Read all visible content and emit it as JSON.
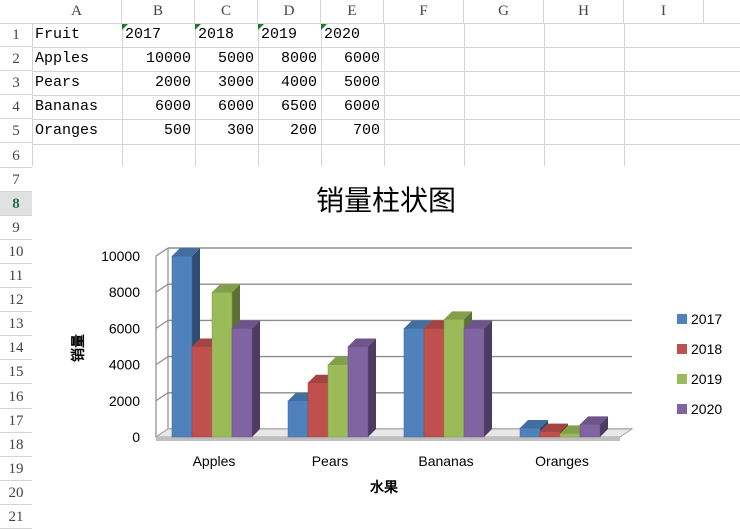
{
  "sheet": {
    "columns": [
      "A",
      "B",
      "C",
      "D",
      "E",
      "F",
      "G",
      "H",
      "I"
    ],
    "rows": [
      "1",
      "2",
      "3",
      "4",
      "5",
      "6",
      "7",
      "8",
      "9",
      "10",
      "11",
      "12",
      "13",
      "14",
      "15",
      "16",
      "17",
      "18",
      "19",
      "20",
      "21"
    ],
    "active_row": "8",
    "header_row": [
      "Fruit",
      "2017",
      "2018",
      "2019",
      "2020"
    ],
    "data_rows": [
      [
        "Apples",
        "10000",
        "5000",
        "8000",
        "6000"
      ],
      [
        "Pears",
        "2000",
        "3000",
        "4000",
        "5000"
      ],
      [
        "Bananas",
        "6000",
        "6000",
        "6500",
        "6000"
      ],
      [
        "Oranges",
        "500",
        "300",
        "200",
        "700"
      ]
    ]
  },
  "chart_data": {
    "type": "bar",
    "style": "3d-clustered-column",
    "title": "销量柱状图",
    "xlabel": "水果",
    "ylabel": "销量",
    "categories": [
      "Apples",
      "Pears",
      "Bananas",
      "Oranges"
    ],
    "series": [
      {
        "name": "2017",
        "color": "#4f81bd",
        "values": [
          10000,
          2000,
          6000,
          500
        ]
      },
      {
        "name": "2018",
        "color": "#c0504d",
        "values": [
          5000,
          3000,
          6000,
          300
        ]
      },
      {
        "name": "2019",
        "color": "#9bbb59",
        "values": [
          8000,
          4000,
          6500,
          200
        ]
      },
      {
        "name": "2020",
        "color": "#8064a2",
        "values": [
          6000,
          5000,
          6000,
          700
        ]
      }
    ],
    "yticks": [
      "0",
      "2000",
      "4000",
      "6000",
      "8000",
      "10000"
    ],
    "ylim": [
      0,
      10000
    ],
    "grid": true,
    "legend_position": "right"
  }
}
